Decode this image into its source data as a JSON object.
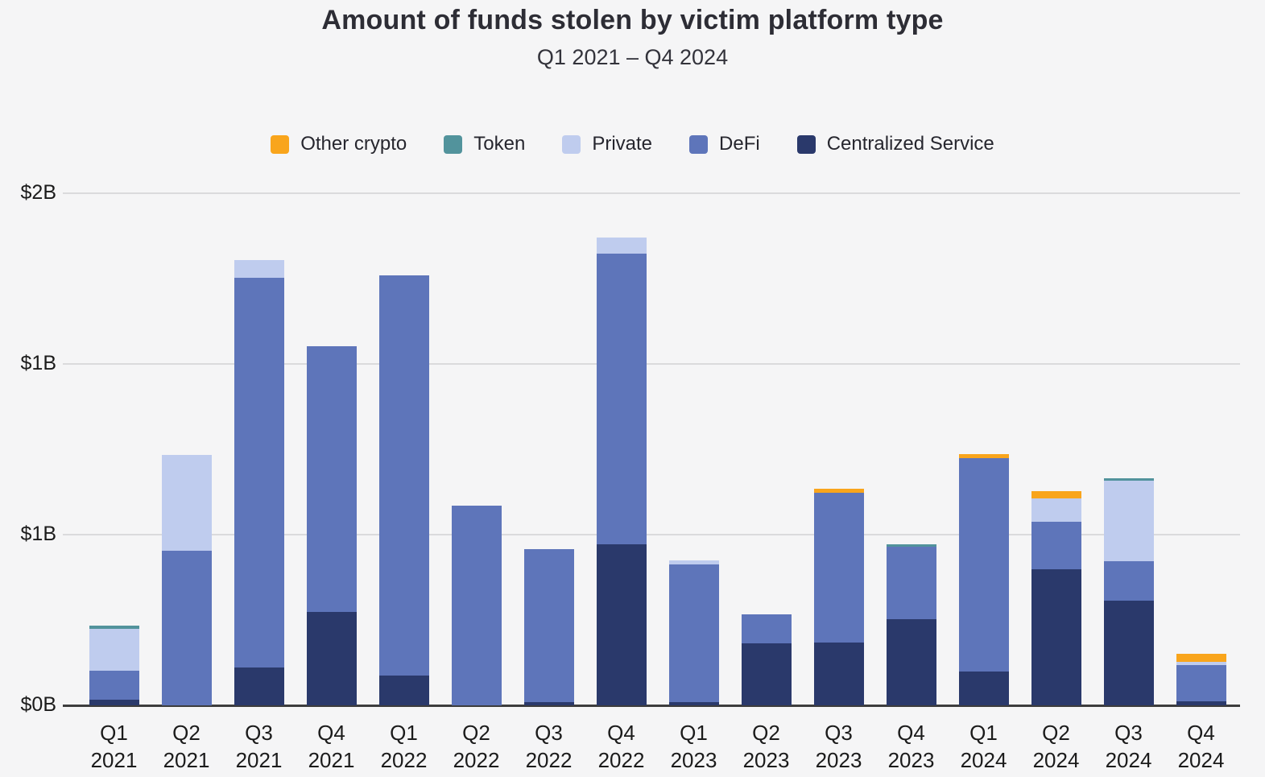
{
  "chart_data": {
    "type": "bar",
    "stacked": true,
    "title": "Amount of funds stolen by victim platform type",
    "subtitle": "Q1 2021 – Q4 2024",
    "unit": "USD billions",
    "legend_position": "top-center",
    "categories": [
      "Q1 2021",
      "Q2 2021",
      "Q3 2021",
      "Q4 2021",
      "Q1 2022",
      "Q2 2022",
      "Q3 2022",
      "Q4 2022",
      "Q1 2023",
      "Q2 2023",
      "Q3 2023",
      "Q4 2023",
      "Q1 2024",
      "Q2 2024",
      "Q3 2024",
      "Q4 2024"
    ],
    "series": [
      {
        "name": "Other crypto",
        "color": "#f9a51c",
        "values": [
          0,
          0,
          0,
          0,
          0,
          0,
          0,
          0,
          0,
          0,
          0.011,
          0,
          0.013,
          0.021,
          0,
          0.024
        ]
      },
      {
        "name": "Token",
        "color": "#52939c",
        "values": [
          0.01,
          0,
          0,
          0,
          0,
          0,
          0,
          0,
          0,
          0,
          0,
          0.007,
          0,
          0,
          0.007,
          0
        ]
      },
      {
        "name": "Private",
        "color": "#bfccee",
        "values": [
          0.123,
          0.281,
          0.052,
          0,
          0,
          0,
          0,
          0.047,
          0.012,
          0,
          0,
          0,
          0,
          0.068,
          0.236,
          0.01
        ]
      },
      {
        "name": "DeFi",
        "color": "#5e75ba",
        "values": [
          0.085,
          0.452,
          1.142,
          0.778,
          1.172,
          0.585,
          0.448,
          0.851,
          0.403,
          0.085,
          0.439,
          0.212,
          0.626,
          0.139,
          0.115,
          0.106
        ]
      },
      {
        "name": "Centralized Service",
        "color": "#2a396b",
        "values": [
          0.016,
          0,
          0.11,
          0.274,
          0.087,
          0,
          0.009,
          0.472,
          0.009,
          0.182,
          0.184,
          0.252,
          0.098,
          0.399,
          0.307,
          0.012
        ]
      }
    ],
    "stack_order_bottom_to_top": [
      "Centralized Service",
      "DeFi",
      "Private",
      "Token",
      "Other crypto"
    ],
    "y_axis": {
      "gridlines": true,
      "range": [
        0,
        1.75
      ],
      "ticks": [
        {
          "value": 0,
          "label": "$0B"
        },
        {
          "value": 0.5,
          "label": "$1B"
        },
        {
          "value": 1.0,
          "label": "$1B"
        },
        {
          "value": 1.5,
          "label": "$2B"
        }
      ]
    }
  }
}
